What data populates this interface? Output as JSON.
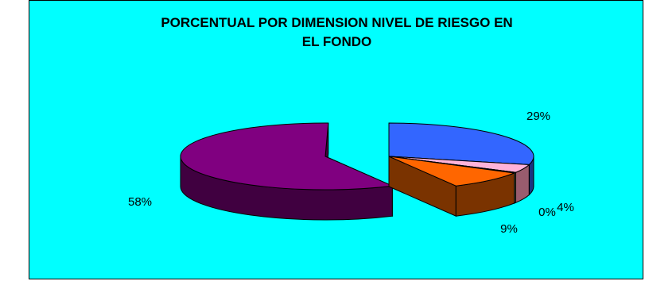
{
  "chart_data": {
    "type": "pie",
    "title_lines": [
      "PORCENTUAL POR DIMENSION NIVEL DE RIESGO EN",
      "EL FONDO"
    ],
    "three_d": true,
    "background": "#00FFFF",
    "slices": [
      {
        "value": 29,
        "label": "29%",
        "color": "#3366FF",
        "side_color": "#1A3480",
        "exploded": true
      },
      {
        "value": 4,
        "label": "4%",
        "color": "#FFB3D9",
        "side_color": "#995C6E",
        "exploded": true
      },
      {
        "value": 0,
        "label": "0%",
        "color": "#CCCC99",
        "side_color": "#6B6B4C",
        "exploded": true
      },
      {
        "value": 9,
        "label": "9%",
        "color": "#FF6600",
        "side_color": "#7A3300",
        "exploded": true
      },
      {
        "value": 58,
        "label": "58%",
        "color": "#800080",
        "side_color": "#400040",
        "exploded": false
      }
    ]
  }
}
